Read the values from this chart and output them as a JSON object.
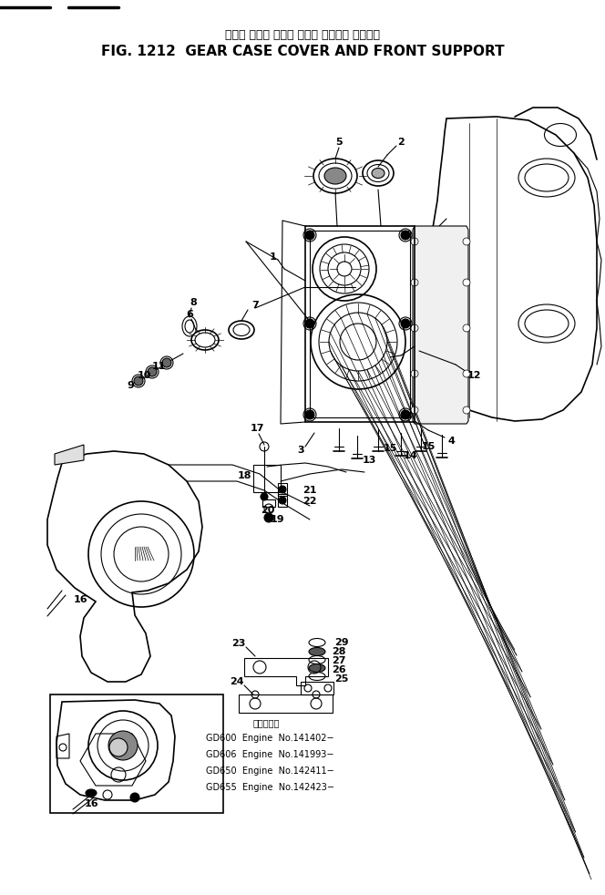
{
  "title_japanese": "ギヤー ケース カバー および フロント サポート",
  "title_english": "FIG. 1212  GEAR CASE COVER AND FRONT SUPPORT",
  "bg_color": "#ffffff",
  "fig_width": 6.64,
  "fig_height": 9.82,
  "dpi": 100,
  "parts_info_header": "適用番号：",
  "parts_info": [
    "GD600  Engine  No.141402−",
    "GD606  Engine  No.141993−",
    "GD650  Engine  No.142411−",
    "GD655  Engine  No.142423−"
  ]
}
